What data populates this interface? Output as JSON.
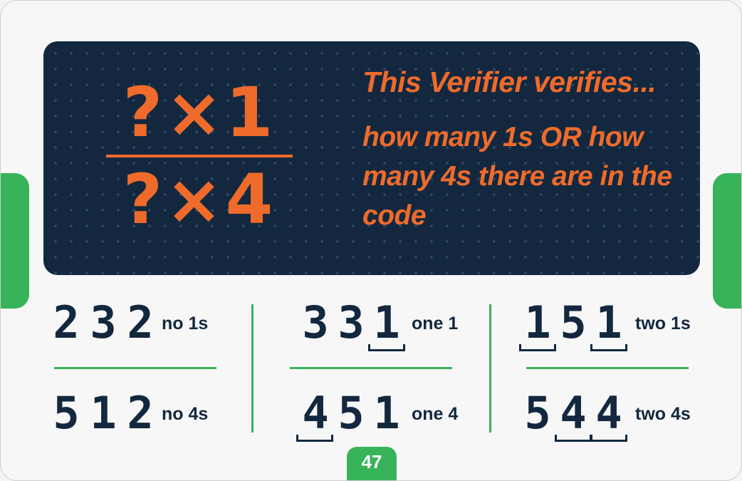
{
  "fraction": {
    "numerator": "?×1",
    "denominator": "?×4"
  },
  "verifier": {
    "title": "This Verifier verifies...",
    "description": "how many 1s OR how many 4s there are in the code"
  },
  "examples": [
    {
      "digits": [
        "2",
        "3",
        "2"
      ],
      "note": "no 1s",
      "highlighted": []
    },
    {
      "digits": [
        "3",
        "3",
        "1"
      ],
      "note": "one 1",
      "highlighted": [
        2
      ]
    },
    {
      "digits": [
        "1",
        "5",
        "1"
      ],
      "note": "two 1s",
      "highlighted": [
        0,
        2
      ]
    },
    {
      "digits": [
        "5",
        "1",
        "2"
      ],
      "note": "no 4s",
      "highlighted": []
    },
    {
      "digits": [
        "4",
        "5",
        "1"
      ],
      "note": "one 4",
      "highlighted": [
        0
      ]
    },
    {
      "digits": [
        "5",
        "4",
        "4"
      ],
      "note": "two 4s",
      "highlighted": [
        1,
        2
      ]
    }
  ],
  "page_number": "47",
  "colors": {
    "navy": "#13283f",
    "orange": "#ef6b2b",
    "green": "#37b35a"
  }
}
